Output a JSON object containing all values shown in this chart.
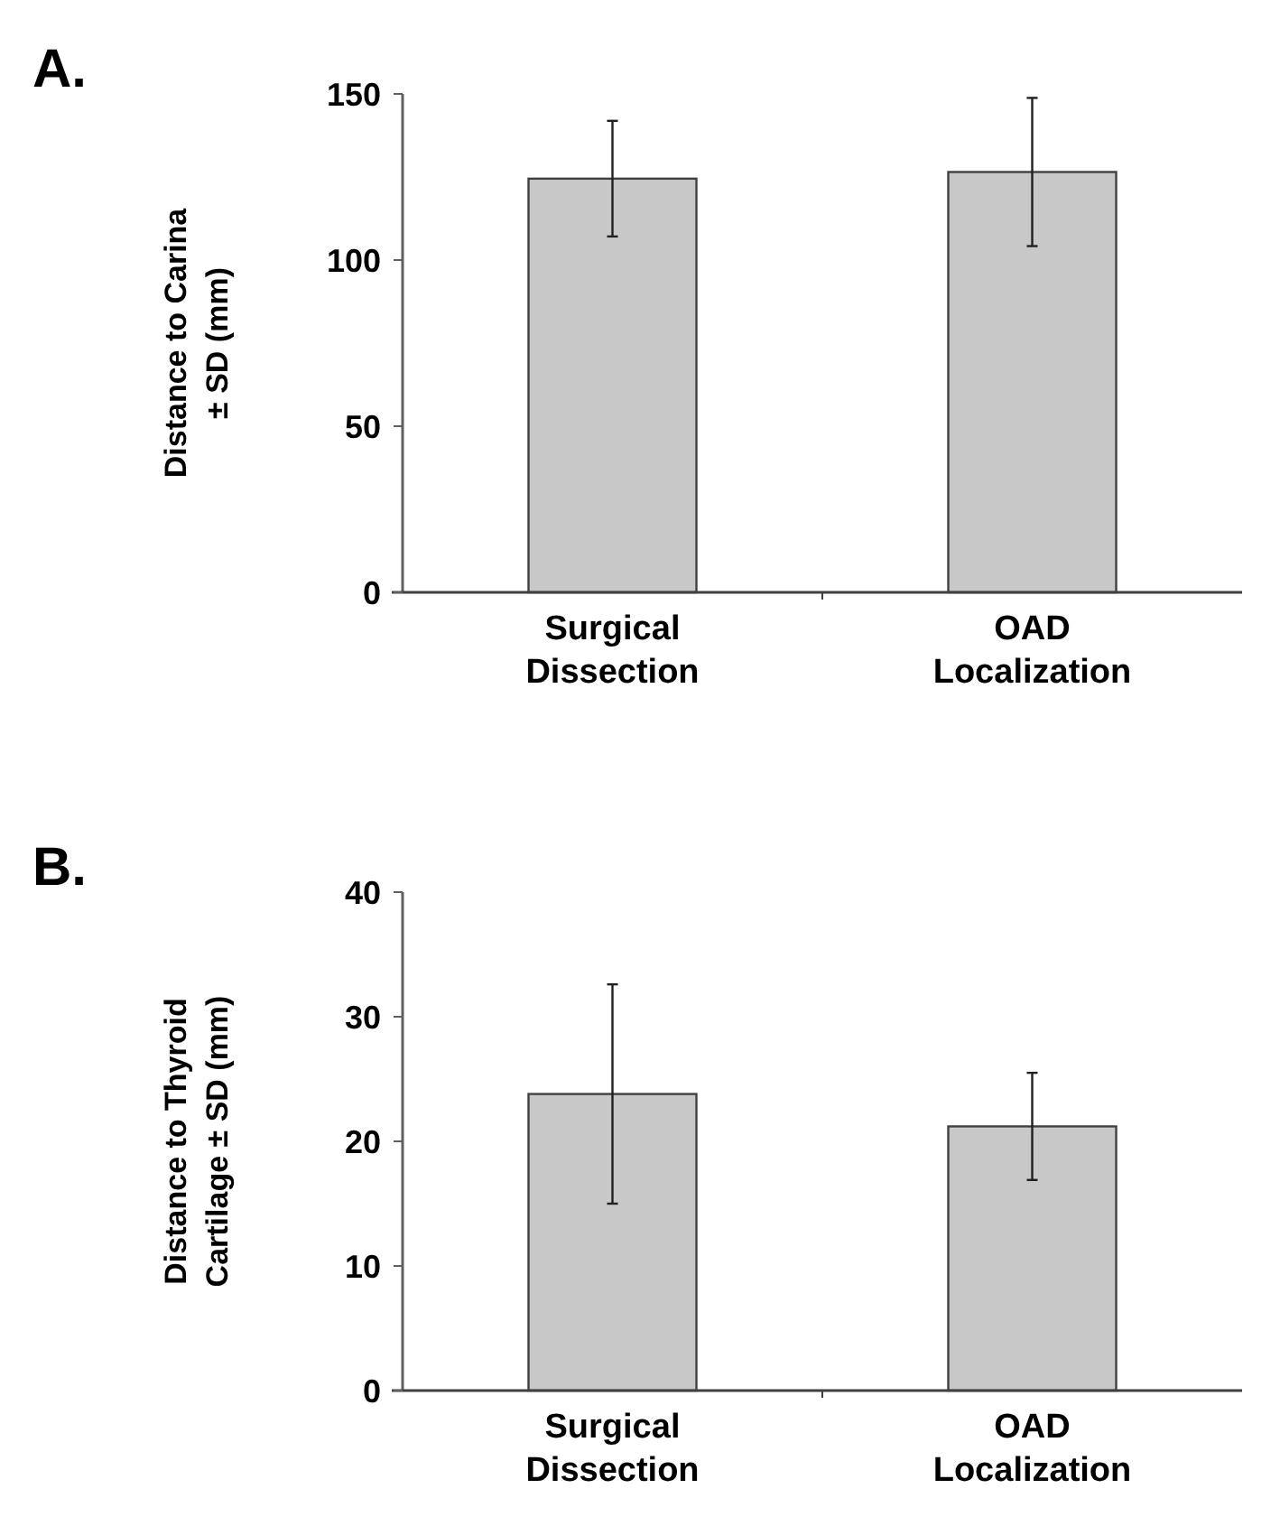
{
  "chart_data": [
    {
      "type": "bar",
      "title": "A.",
      "ylabel": "Distance to Carina\n± SD (mm)",
      "categories": [
        "Surgical\nDissection",
        "OAD\nLocalization"
      ],
      "values": [
        124.5,
        126.5
      ],
      "errors": [
        17.4,
        22.3
      ],
      "color": "#c8c8c8",
      "ylim": [
        0,
        150
      ],
      "yticks": [
        0,
        50,
        100,
        150
      ],
      "grid": false
    },
    {
      "type": "bar",
      "title": "B.",
      "ylabel": "Distance to Thyroid\nCartilage ± SD (mm)",
      "categories": [
        "Surgical\nDissection",
        "OAD\nLocalization"
      ],
      "values": [
        23.8,
        21.2
      ],
      "errors": [
        8.8,
        4.3
      ],
      "color": "#c8c8c8",
      "ylim": [
        0,
        40
      ],
      "yticks": [
        0,
        10,
        20,
        30,
        40
      ],
      "grid": false
    }
  ]
}
